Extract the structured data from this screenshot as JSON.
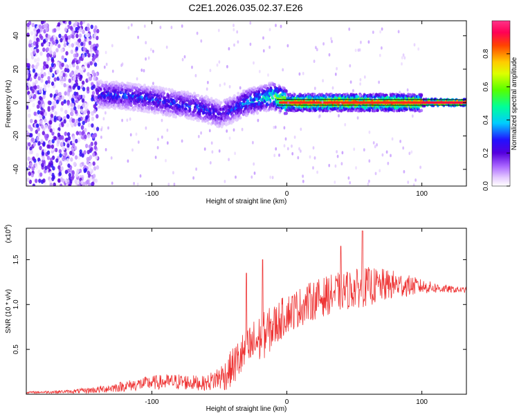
{
  "title": "C2E1.2026.035.02.37.E26",
  "chart_data": [
    {
      "type": "heatmap",
      "xlabel": "Height of straight line (km)",
      "ylabel": "Frequency (Hz)",
      "xlim": [
        -193,
        133
      ],
      "ylim": [
        -50,
        49
      ],
      "xticks": [
        -100,
        0,
        100
      ],
      "xtick_labels": [
        "-100",
        "0",
        "100"
      ],
      "yticks": [
        -40,
        -20,
        0,
        20,
        40
      ],
      "ytick_labels": [
        "-40",
        "-20",
        "0",
        "20",
        "40"
      ],
      "colorbar": {
        "label": "Normalized spectral amplitude",
        "range": [
          0,
          1
        ],
        "ticks": [
          0.0,
          0.2,
          0.4,
          0.6,
          0.8
        ],
        "tick_labels": [
          "0.0",
          "0.2",
          "0.4",
          "0.6",
          "0.8"
        ]
      },
      "ridge": {
        "x": [
          -140,
          -120,
          -100,
          -80,
          -70,
          -60,
          -50,
          -40,
          -30,
          -20,
          -10,
          0,
          20,
          50,
          80,
          100,
          133
        ],
        "freq": [
          5,
          4,
          2,
          -1,
          -2,
          -4,
          -7,
          -4,
          0,
          2,
          4,
          0,
          0,
          0,
          0,
          0,
          0
        ],
        "amplitude": [
          0.35,
          0.35,
          0.35,
          0.35,
          0.35,
          0.35,
          0.3,
          0.35,
          0.45,
          0.5,
          0.6,
          0.9,
          0.95,
          0.95,
          0.95,
          0.95,
          0.95
        ]
      }
    },
    {
      "type": "line",
      "xlabel": "Height of straight line (km)",
      "ylabel": "SNR (10 * v/v)",
      "scale_label": "(x10",
      "scale_exponent": "4",
      "xlim": [
        -193,
        133
      ],
      "ylim": [
        0,
        1.85
      ],
      "xticks": [
        -100,
        0,
        100
      ],
      "xtick_labels": [
        "-100",
        "0",
        "100"
      ],
      "yticks": [
        0.5,
        1.0,
        1.5
      ],
      "ytick_labels": [
        "0.5",
        "1.0",
        "1.5"
      ],
      "series": [
        {
          "name": "SNR",
          "color": "#ee3333",
          "x": [
            -193,
            -160,
            -140,
            -120,
            -100,
            -80,
            -60,
            -45,
            -35,
            -25,
            -10,
            0,
            20,
            40,
            60,
            80,
            100,
            120,
            133
          ],
          "mean": [
            0.02,
            0.03,
            0.05,
            0.09,
            0.13,
            0.14,
            0.12,
            0.22,
            0.4,
            0.55,
            0.75,
            0.9,
            1.05,
            1.15,
            1.2,
            1.22,
            1.2,
            1.17,
            1.16
          ],
          "noise": [
            0.01,
            0.02,
            0.04,
            0.06,
            0.08,
            0.09,
            0.08,
            0.18,
            0.25,
            0.28,
            0.25,
            0.22,
            0.22,
            0.22,
            0.22,
            0.16,
            0.08,
            0.04,
            0.03
          ]
        }
      ],
      "spikes": [
        {
          "x": -30,
          "y": 1.35
        },
        {
          "x": -18,
          "y": 1.5
        },
        {
          "x": 40,
          "y": 1.65
        },
        {
          "x": 56,
          "y": 1.82
        }
      ]
    }
  ]
}
